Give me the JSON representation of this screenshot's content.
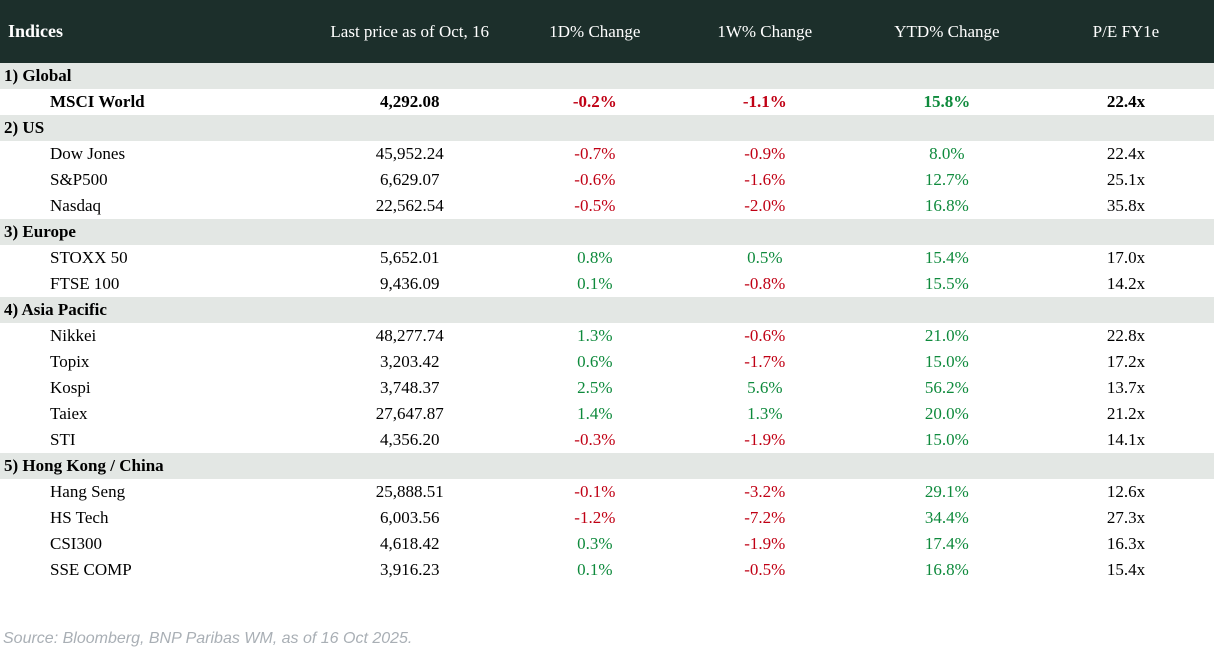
{
  "chart_data": {
    "type": "table",
    "title": "Indices",
    "columns": [
      "Indices",
      "Last price as of Oct, 16",
      "1D% Change",
      "1W% Change",
      "YTD% Change",
      "P/E FY1e"
    ],
    "sections": [
      {
        "label": "1) Global",
        "rows": [
          {
            "name": "MSCI World",
            "last_price": "4,292.08",
            "change_1d": "-0.2%",
            "change_1w": "-1.1%",
            "change_ytd": "15.8%",
            "pe_fy1e": "22.4x",
            "emphasis": true
          }
        ]
      },
      {
        "label": "2) US",
        "rows": [
          {
            "name": "Dow Jones",
            "last_price": "45,952.24",
            "change_1d": "-0.7%",
            "change_1w": "-0.9%",
            "change_ytd": "8.0%",
            "pe_fy1e": "22.4x",
            "emphasis": false
          },
          {
            "name": "S&P500",
            "last_price": "6,629.07",
            "change_1d": "-0.6%",
            "change_1w": "-1.6%",
            "change_ytd": "12.7%",
            "pe_fy1e": "25.1x",
            "emphasis": false
          },
          {
            "name": "Nasdaq",
            "last_price": "22,562.54",
            "change_1d": "-0.5%",
            "change_1w": "-2.0%",
            "change_ytd": "16.8%",
            "pe_fy1e": "35.8x",
            "emphasis": false
          }
        ]
      },
      {
        "label": "3) Europe",
        "rows": [
          {
            "name": "STOXX 50",
            "last_price": "5,652.01",
            "change_1d": "0.8%",
            "change_1w": "0.5%",
            "change_ytd": "15.4%",
            "pe_fy1e": "17.0x",
            "emphasis": false
          },
          {
            "name": "FTSE 100",
            "last_price": "9,436.09",
            "change_1d": "0.1%",
            "change_1w": "-0.8%",
            "change_ytd": "15.5%",
            "pe_fy1e": "14.2x",
            "emphasis": false
          }
        ]
      },
      {
        "label": "4) Asia Pacific",
        "rows": [
          {
            "name": "Nikkei",
            "last_price": "48,277.74",
            "change_1d": "1.3%",
            "change_1w": "-0.6%",
            "change_ytd": "21.0%",
            "pe_fy1e": "22.8x",
            "emphasis": false
          },
          {
            "name": "Topix",
            "last_price": "3,203.42",
            "change_1d": "0.6%",
            "change_1w": "-1.7%",
            "change_ytd": "15.0%",
            "pe_fy1e": "17.2x",
            "emphasis": false
          },
          {
            "name": "Kospi",
            "last_price": "3,748.37",
            "change_1d": "2.5%",
            "change_1w": "5.6%",
            "change_ytd": "56.2%",
            "pe_fy1e": "13.7x",
            "emphasis": false
          },
          {
            "name": "Taiex",
            "last_price": "27,647.87",
            "change_1d": "1.4%",
            "change_1w": "1.3%",
            "change_ytd": "20.0%",
            "pe_fy1e": "21.2x",
            "emphasis": false
          },
          {
            "name": "STI",
            "last_price": "4,356.20",
            "change_1d": "-0.3%",
            "change_1w": "-1.9%",
            "change_ytd": "15.0%",
            "pe_fy1e": "14.1x",
            "emphasis": false
          }
        ]
      },
      {
        "label": "5) Hong Kong / China",
        "rows": [
          {
            "name": "Hang Seng",
            "last_price": "25,888.51",
            "change_1d": "-0.1%",
            "change_1w": "-3.2%",
            "change_ytd": "29.1%",
            "pe_fy1e": "12.6x",
            "emphasis": false
          },
          {
            "name": "HS Tech",
            "last_price": "6,003.56",
            "change_1d": "-1.2%",
            "change_1w": "-7.2%",
            "change_ytd": "34.4%",
            "pe_fy1e": "27.3x",
            "emphasis": false
          },
          {
            "name": "CSI300",
            "last_price": "4,618.42",
            "change_1d": "0.3%",
            "change_1w": "-1.9%",
            "change_ytd": "17.4%",
            "pe_fy1e": "16.3x",
            "emphasis": false
          },
          {
            "name": "SSE COMP",
            "last_price": "3,916.23",
            "change_1d": "0.1%",
            "change_1w": "-0.5%",
            "change_ytd": "16.8%",
            "pe_fy1e": "15.4x",
            "emphasis": false
          }
        ]
      }
    ]
  },
  "footer": {
    "source": "Source: Bloomberg, BNP Paribas WM, as of 16 Oct 2025."
  },
  "colors": {
    "header_bg": "#1C2F2B",
    "header_text": "#FFFFFF",
    "section_bg": "#E3E7E4",
    "positive": "#0E8A3C",
    "negative": "#C00014",
    "text": "#000000",
    "source_text": "#A9AFB5"
  }
}
